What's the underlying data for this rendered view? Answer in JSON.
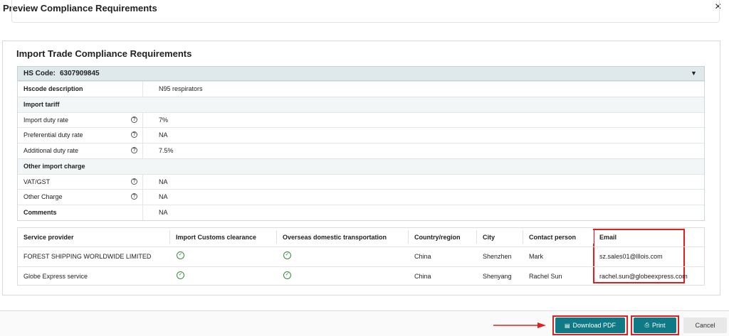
{
  "header": {
    "title": "Preview Compliance Requirements"
  },
  "section": {
    "title": "Import Trade Compliance Requirements"
  },
  "hs": {
    "label": "HS Code:",
    "code": "6307909845"
  },
  "details": {
    "rows": [
      {
        "label": "Hscode description",
        "value": "N95 respirators"
      },
      {
        "group": "Import tariff"
      },
      {
        "label": "Import duty rate",
        "value": "7%",
        "help": true
      },
      {
        "label": "Preferential duty rate",
        "value": "NA",
        "help": true
      },
      {
        "label": "Additional duty rate",
        "value": "7.5%",
        "help": true
      },
      {
        "group": "Other import charge"
      },
      {
        "label": "VAT/GST",
        "value": "NA",
        "help": true
      },
      {
        "label": "Other Charge",
        "value": "NA",
        "help": true
      },
      {
        "label": "Comments",
        "value": "NA"
      }
    ]
  },
  "providers": {
    "columns": [
      "Service provider",
      "Import Customs clearance",
      "Overseas domestic transportation",
      "Country/region",
      "City",
      "Contact person",
      "Email"
    ],
    "rows": [
      [
        "FOREST SHIPPING WORLDWIDE LIMITED",
        true,
        true,
        "China",
        "Shenzhen",
        "Mark",
        "sz.sales01@lllois.com"
      ],
      [
        "Globe Express service",
        true,
        true,
        "China",
        "Shenyang",
        "Rachel Sun",
        "rachel.sun@globeexpress.com"
      ]
    ]
  },
  "buttons": {
    "download": "Download PDF",
    "print": "Print",
    "cancel": "Cancel"
  }
}
